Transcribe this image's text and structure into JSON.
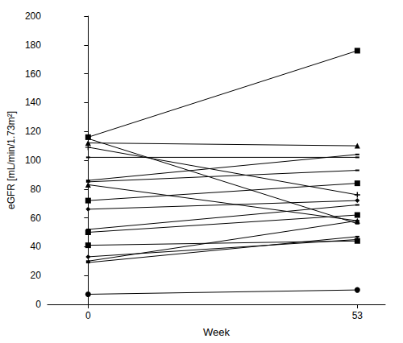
{
  "chart_data": {
    "type": "line",
    "x_label": "Week",
    "y_label": "eGFR [mL/min/1.73m²]",
    "x": [
      0,
      53
    ],
    "xlim": [
      -8,
      58.5
    ],
    "xticks": [
      0,
      53
    ],
    "ylim": [
      0,
      200
    ],
    "yticks": [
      0,
      20,
      40,
      60,
      80,
      100,
      120,
      140,
      160,
      180,
      200
    ],
    "grid": false,
    "series": [
      {
        "color": "#000000",
        "marker": "square",
        "values": [
          116,
          176
        ]
      },
      {
        "color": "#000000",
        "marker": "dash",
        "values": [
          115,
          56
        ]
      },
      {
        "color": "#000000",
        "marker": "triangle",
        "values": [
          112,
          110
        ]
      },
      {
        "color": "#000000",
        "marker": "plus",
        "values": [
          109,
          76
        ]
      },
      {
        "color": "#000000",
        "marker": "dash",
        "values": [
          102,
          102
        ]
      },
      {
        "color": "#000000",
        "marker": "dash",
        "values": [
          86,
          104
        ]
      },
      {
        "color": "#000000",
        "marker": "dash",
        "values": [
          85,
          93
        ]
      },
      {
        "color": "#000000",
        "marker": "triangle",
        "values": [
          83,
          58
        ]
      },
      {
        "color": "#000000",
        "marker": "square",
        "values": [
          72,
          84
        ]
      },
      {
        "color": "#000000",
        "marker": "diamond",
        "values": [
          66,
          72
        ]
      },
      {
        "color": "#000000",
        "marker": "dash",
        "values": [
          52,
          69
        ]
      },
      {
        "color": "#000000",
        "marker": "square",
        "values": [
          50,
          62
        ]
      },
      {
        "color": "#000000",
        "marker": "square",
        "values": [
          41,
          44
        ]
      },
      {
        "color": "#000000",
        "marker": "diamond",
        "values": [
          33,
          45
        ]
      },
      {
        "color": "#000000",
        "marker": "dash",
        "values": [
          30,
          58
        ]
      },
      {
        "color": "#000000",
        "marker": "dash",
        "values": [
          29,
          47
        ]
      },
      {
        "color": "#000000",
        "marker": "circle",
        "values": [
          7,
          10
        ]
      }
    ]
  }
}
